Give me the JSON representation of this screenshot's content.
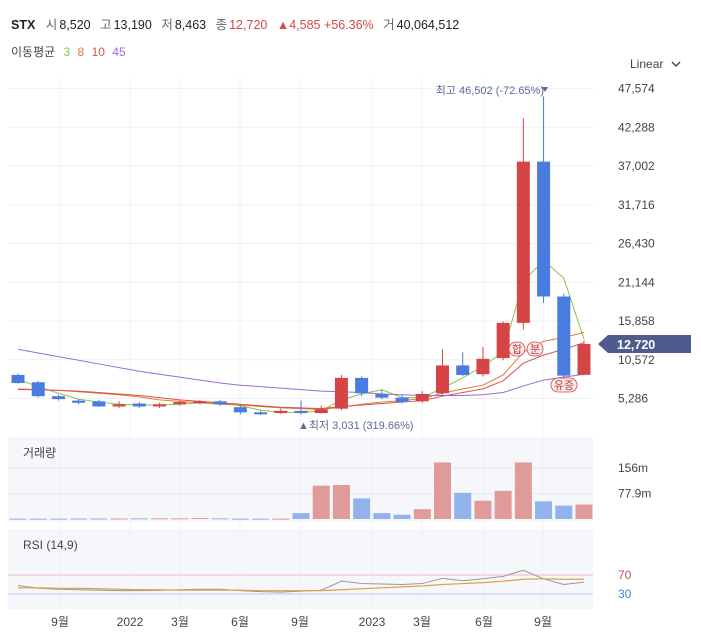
{
  "header": {
    "symbol": "STX",
    "open_label": "시",
    "open": "8,520",
    "high_label": "고",
    "high": "13,190",
    "low_label": "저",
    "low": "8,463",
    "close_label": "종",
    "close": "12,720",
    "change": "▲4,585 +56.36%",
    "volume_label": "거",
    "volume": "40,064,512"
  },
  "ma_legend": {
    "label": "이동평균",
    "periods": [
      "3",
      "8",
      "10",
      "45"
    ],
    "colors": [
      "#8bc34a",
      "#e07b39",
      "#d9534f",
      "#9c6ade"
    ]
  },
  "scale_toggle": {
    "label": "Linear",
    "icon": "chevron-down-icon"
  },
  "chart_data": [
    {
      "type": "candlestick",
      "ylabels": [
        "47,574",
        "42,288",
        "37,002",
        "31,716",
        "26,430",
        "21,144",
        "15,858",
        "10,572",
        "5,286"
      ],
      "ylim": [
        0,
        50000
      ],
      "y_ticks": [
        47574,
        42288,
        37002,
        31716,
        26430,
        21144,
        15858,
        10572,
        5286
      ],
      "x_labels": [
        "9월",
        "2022",
        "3월",
        "6월",
        "9월",
        "2023",
        "3월",
        "6월",
        "9월"
      ],
      "current_price": 12720,
      "current_label": "12,720",
      "max_label": "최고 46,502 (-72.65%)",
      "min_label": "▲최저 3,031 (319.66%)",
      "markers": [
        "합",
        "분",
        "유증"
      ],
      "candles": [
        {
          "o": 8500,
          "c": 7400,
          "h": 8700,
          "l": 7300
        },
        {
          "o": 7500,
          "c": 5600,
          "h": 7700,
          "l": 5400
        },
        {
          "o": 5600,
          "c": 5200,
          "h": 5800,
          "l": 5000
        },
        {
          "o": 5000,
          "c": 4700,
          "h": 5200,
          "l": 4500
        },
        {
          "o": 4900,
          "c": 4200,
          "h": 5100,
          "l": 4100
        },
        {
          "o": 4200,
          "c": 4500,
          "h": 4900,
          "l": 4000
        },
        {
          "o": 4600,
          "c": 4200,
          "h": 4800,
          "l": 4000
        },
        {
          "o": 4200,
          "c": 4500,
          "h": 4700,
          "l": 4000
        },
        {
          "o": 4500,
          "c": 4800,
          "h": 5000,
          "l": 4300
        },
        {
          "o": 4700,
          "c": 4900,
          "h": 5100,
          "l": 4500
        },
        {
          "o": 4900,
          "c": 4500,
          "h": 5100,
          "l": 4300
        },
        {
          "o": 4100,
          "c": 3400,
          "h": 4400,
          "l": 3100
        },
        {
          "o": 3400,
          "c": 3200,
          "h": 3600,
          "l": 3031
        },
        {
          "o": 3300,
          "c": 3600,
          "h": 3900,
          "l": 3200
        },
        {
          "o": 3600,
          "c": 3300,
          "h": 5000,
          "l": 3100
        },
        {
          "o": 3300,
          "c": 3800,
          "h": 4300,
          "l": 3200
        },
        {
          "o": 3900,
          "c": 8100,
          "h": 8500,
          "l": 3700
        },
        {
          "o": 8100,
          "c": 6000,
          "h": 8300,
          "l": 5600
        },
        {
          "o": 5900,
          "c": 5400,
          "h": 6500,
          "l": 5200
        },
        {
          "o": 5400,
          "c": 4800,
          "h": 5800,
          "l": 4600
        },
        {
          "o": 4900,
          "c": 5900,
          "h": 6300,
          "l": 4700
        },
        {
          "o": 6000,
          "c": 9800,
          "h": 12000,
          "l": 5800
        },
        {
          "o": 9800,
          "c": 8500,
          "h": 11600,
          "l": 8300
        },
        {
          "o": 8600,
          "c": 10700,
          "h": 12300,
          "l": 8300
        },
        {
          "o": 10800,
          "c": 15600,
          "h": 15800,
          "l": 10500
        },
        {
          "o": 15600,
          "c": 37600,
          "h": 43500,
          "l": 14700
        },
        {
          "o": 37600,
          "c": 19200,
          "h": 46502,
          "l": 18300
        },
        {
          "o": 19200,
          "c": 8400,
          "h": 19600,
          "l": 8100
        },
        {
          "o": 8520,
          "c": 12720,
          "h": 13190,
          "l": 8463
        }
      ],
      "ma_lines": {
        "ma3": [
          7900,
          6900,
          6000,
          5200,
          4800,
          4500,
          4400,
          4400,
          4500,
          4700,
          4700,
          4300,
          3700,
          3400,
          3400,
          3600,
          5100,
          5900,
          6500,
          5400,
          5400,
          6700,
          8100,
          9700,
          11600,
          21300,
          24100,
          21700,
          13400
        ],
        "ma8": [
          6600,
          6500,
          6400,
          6200,
          6000,
          5800,
          5500,
          5100,
          4900,
          4700,
          4500,
          4400,
          4200,
          4000,
          3900,
          3800,
          4100,
          4500,
          4800,
          5000,
          5300,
          6000,
          6600,
          7100,
          8500,
          11600,
          13100,
          13600,
          14300
        ],
        "ma10": [
          6500,
          6500,
          6400,
          6300,
          6100,
          5900,
          5700,
          5400,
          5100,
          4900,
          4700,
          4500,
          4300,
          4100,
          4000,
          3900,
          4200,
          4400,
          4600,
          4800,
          5000,
          5600,
          6100,
          6600,
          7700,
          10100,
          11200,
          12000,
          12900
        ],
        "ma45": [
          12000,
          11500,
          11000,
          10500,
          10000,
          9500,
          9000,
          8600,
          8200,
          7800,
          7400,
          7100,
          6900,
          6700,
          6500,
          6300,
          6200,
          6100,
          5900,
          5800,
          5700,
          5700,
          5700,
          5800,
          6100,
          7000,
          7800,
          8200,
          8600
        ]
      }
    },
    {
      "type": "bar",
      "title": "거래량",
      "ylabels": [
        "156m",
        "77.9m"
      ],
      "y_ticks": [
        156000000,
        77900000
      ],
      "ylim": [
        0,
        180000000
      ],
      "values": [
        1000000,
        1000000,
        1000000,
        1500000,
        1500000,
        1500000,
        2000000,
        2000000,
        2000000,
        3000000,
        2000000,
        1000000,
        1000000,
        1000000,
        18000000,
        102000000,
        104000000,
        63000000,
        18000000,
        13000000,
        30000000,
        173000000,
        80000000,
        56000000,
        86000000,
        173000000,
        54000000,
        41000000,
        44000000
      ],
      "up": [
        false,
        false,
        false,
        false,
        false,
        true,
        false,
        true,
        true,
        true,
        false,
        false,
        false,
        true,
        false,
        true,
        true,
        false,
        false,
        false,
        true,
        true,
        false,
        true,
        true,
        true,
        false,
        false,
        true
      ]
    },
    {
      "type": "line",
      "title": "RSI (14,9)",
      "ylabels": [
        "70",
        "30"
      ],
      "y_ticks": [
        70,
        30
      ],
      "ylim": [
        0,
        100
      ],
      "rsi": [
        48,
        42,
        40,
        39,
        38,
        37,
        37,
        38,
        39,
        40,
        40,
        37,
        35,
        34,
        36,
        38,
        57,
        52,
        51,
        50,
        52,
        63,
        58,
        62,
        67,
        80,
        62,
        50,
        55
      ],
      "signal": [
        43,
        43,
        42,
        42,
        41,
        40,
        39,
        39,
        38,
        38,
        38,
        38,
        37,
        37,
        37,
        37,
        39,
        41,
        43,
        45,
        47,
        50,
        52,
        54,
        57,
        61,
        62,
        61,
        61
      ]
    }
  ]
}
